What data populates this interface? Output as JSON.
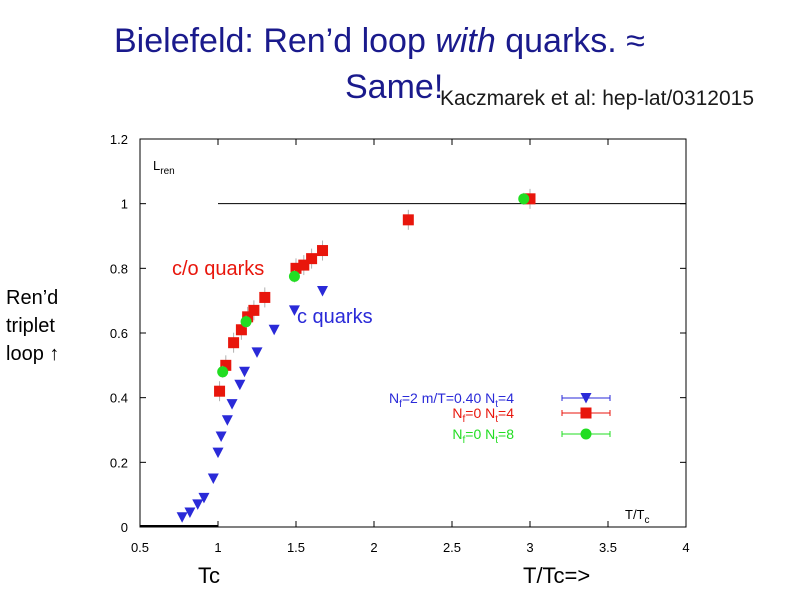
{
  "slide": {
    "title_line1_a": "Bielefeld: Ren’d loop ",
    "title_line1_b": "with",
    "title_line1_c": " quarks.  ≈",
    "title_line2": "Same!",
    "citation": "Kaczmarek et al: hep-lat/0312015",
    "side_label": [
      "Ren’d",
      "triplet",
      "loop ↑"
    ],
    "below_left": "Tc",
    "below_right": "T/Tc=>"
  },
  "colors": {
    "title": "#1a1a8c",
    "blue": "#2a2ad8",
    "red": "#e8160c",
    "green": "#22dd22"
  },
  "chart_data": {
    "type": "scatter",
    "xlim": [
      0.5,
      4
    ],
    "ylim": [
      0,
      1.2
    ],
    "x_ticks": [
      "0.5",
      "1",
      "1.5",
      "2",
      "2.5",
      "3",
      "3.5",
      "4"
    ],
    "y_ticks": [
      "0",
      "0.2",
      "0.4",
      "0.6",
      "0.8",
      "1",
      "1.2"
    ],
    "ylabel_main": "L",
    "ylabel_sub": "ren",
    "xlabel_main": "T/T",
    "xlabel_sub": "c",
    "reference_line_y": 1.0,
    "annotations": [
      {
        "text": "c/o quarks",
        "color": "red"
      },
      {
        "text": "c quarks",
        "color": "blue"
      }
    ],
    "series": [
      {
        "name": "Nf=2 m/T=0.40 Nt=4",
        "legend": {
          "a": "N",
          "a_sub": "f",
          "b": "=2  m/T=0.40  N",
          "b_sub": "t",
          "c": "=4"
        },
        "marker": "triangle-down",
        "color": "blue",
        "points": [
          [
            0.77,
            0.03
          ],
          [
            0.82,
            0.045
          ],
          [
            0.87,
            0.07
          ],
          [
            0.91,
            0.09
          ],
          [
            0.97,
            0.15
          ],
          [
            1.0,
            0.23
          ],
          [
            1.02,
            0.28
          ],
          [
            1.06,
            0.33
          ],
          [
            1.09,
            0.38
          ],
          [
            1.14,
            0.44
          ],
          [
            1.17,
            0.48
          ],
          [
            1.25,
            0.54
          ],
          [
            1.36,
            0.61
          ],
          [
            1.49,
            0.67
          ],
          [
            1.67,
            0.73
          ]
        ]
      },
      {
        "name": "Nf=0 Nt=4",
        "legend": {
          "a": "N",
          "a_sub": "f",
          "b": "=0  N",
          "b_sub": "t",
          "c": "=4"
        },
        "marker": "square",
        "color": "red",
        "points": [
          [
            1.01,
            0.42
          ],
          [
            1.05,
            0.5
          ],
          [
            1.1,
            0.57
          ],
          [
            1.15,
            0.61
          ],
          [
            1.19,
            0.65
          ],
          [
            1.23,
            0.67
          ],
          [
            1.3,
            0.71
          ],
          [
            1.5,
            0.8
          ],
          [
            1.55,
            0.81
          ],
          [
            1.6,
            0.83
          ],
          [
            1.67,
            0.855
          ],
          [
            2.22,
            0.95
          ],
          [
            3.0,
            1.015
          ]
        ]
      },
      {
        "name": "Nf=0 Nt=8",
        "legend": {
          "a": "N",
          "a_sub": "f",
          "b": "=0  N",
          "b_sub": "t",
          "c": "=8"
        },
        "marker": "circle",
        "color": "green",
        "points": [
          [
            1.03,
            0.48
          ],
          [
            1.18,
            0.635
          ],
          [
            1.49,
            0.775
          ],
          [
            2.96,
            1.015
          ]
        ]
      }
    ]
  }
}
